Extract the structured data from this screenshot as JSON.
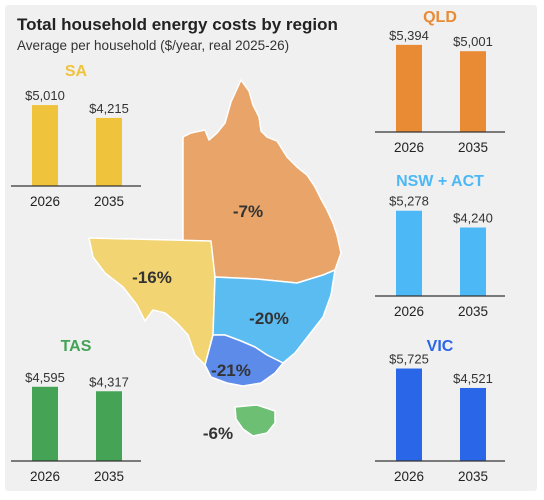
{
  "header": {
    "title": "Total household energy costs by region",
    "subtitle": "Average per household ($/year, real 2025-26)"
  },
  "map": {
    "regions": [
      {
        "id": "qld",
        "label": "-7%",
        "color": "#e8a469"
      },
      {
        "id": "sa",
        "label": "-16%",
        "color": "#f2d472"
      },
      {
        "id": "nsw",
        "label": "-20%",
        "color": "#5bbcf2"
      },
      {
        "id": "vic",
        "label": "-21%",
        "color": "#5d8bea"
      },
      {
        "id": "tas",
        "label": "-6%",
        "color": "#6cbf73"
      }
    ]
  },
  "chart_data": [
    {
      "type": "bar",
      "title": "SA",
      "categories": [
        "2026",
        "2035"
      ],
      "values": [
        5010,
        4215
      ],
      "value_labels": [
        "$5,010",
        "$4,215"
      ],
      "color": "#f0c33c"
    },
    {
      "type": "bar",
      "title": "QLD",
      "categories": [
        "2026",
        "2035"
      ],
      "values": [
        5394,
        5001
      ],
      "value_labels": [
        "$5,394",
        "$5,001"
      ],
      "color": "#e98a35"
    },
    {
      "type": "bar",
      "title": "NSW + ACT",
      "categories": [
        "2026",
        "2035"
      ],
      "values": [
        5278,
        4240
      ],
      "value_labels": [
        "$5,278",
        "$4,240"
      ],
      "color": "#4cb8f5"
    },
    {
      "type": "bar",
      "title": "TAS",
      "categories": [
        "2026",
        "2035"
      ],
      "values": [
        4595,
        4317
      ],
      "value_labels": [
        "$4,595",
        "$4,317"
      ],
      "color": "#45a356"
    },
    {
      "type": "bar",
      "title": "VIC",
      "categories": [
        "2026",
        "2035"
      ],
      "values": [
        5725,
        4521
      ],
      "value_labels": [
        "$5,725",
        "$4,521"
      ],
      "color": "#2a66e8"
    }
  ]
}
